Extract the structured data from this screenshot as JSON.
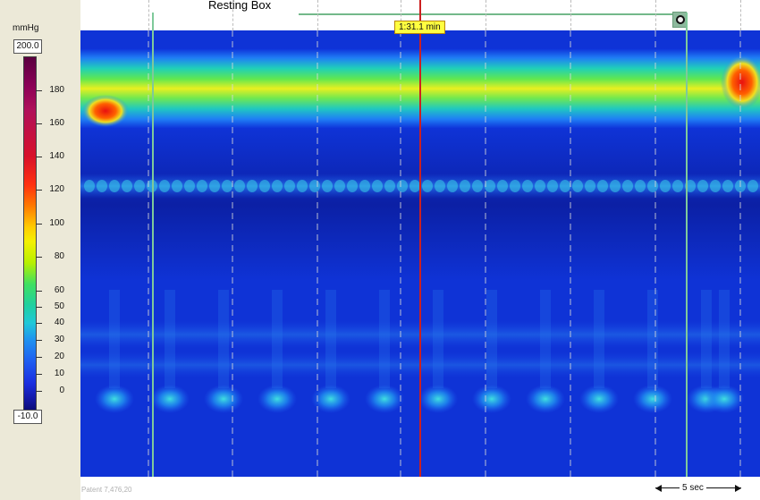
{
  "annotation": {
    "label": "Resting Box",
    "time_marker": "1:31.1 min"
  },
  "colorbar": {
    "unit": "mmHg",
    "max_value": "200.0",
    "min_value": "-10.0",
    "ticks": [
      "180",
      "160",
      "140",
      "120",
      "100",
      "80",
      "60",
      "50",
      "40",
      "30",
      "20",
      "10",
      "0"
    ]
  },
  "footer": {
    "patent": "Patent 7,476,20",
    "scale": "5 sec"
  },
  "colors": {
    "background_field": "#0e2fd8",
    "resting_box": "#73b88a",
    "cursor": "#cc2020",
    "time_marker_bg": "#ffff40"
  }
}
